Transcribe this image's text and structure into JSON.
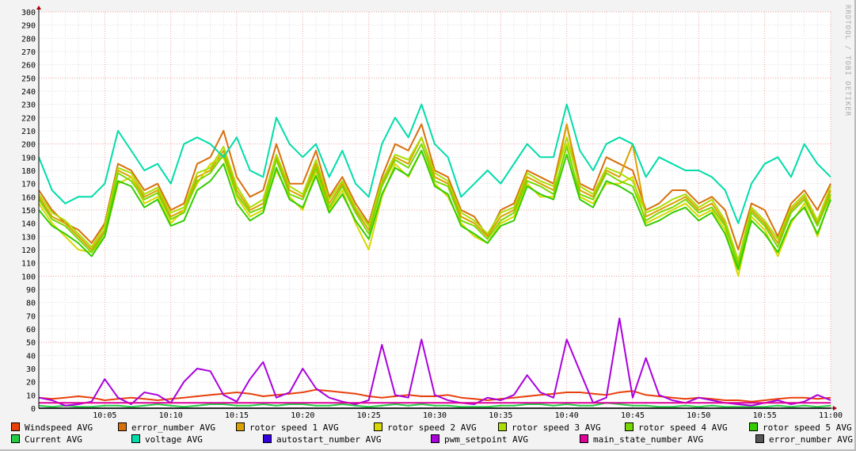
{
  "watermark": "RRDTOOL / TOBI OETIKER",
  "chart_data": {
    "type": "line",
    "title": "",
    "xlabel": "",
    "ylabel": "",
    "ylim": [
      0,
      300
    ],
    "y_ticks": [
      0,
      10,
      20,
      30,
      40,
      50,
      60,
      70,
      80,
      90,
      100,
      110,
      120,
      130,
      140,
      150,
      160,
      170,
      180,
      190,
      200,
      210,
      220,
      230,
      240,
      250,
      260,
      270,
      280,
      290,
      300
    ],
    "x_range": [
      "10:00",
      "11:00"
    ],
    "x_tick_labels": [
      "10:05",
      "10:10",
      "10:15",
      "10:20",
      "10:25",
      "10:30",
      "10:35",
      "10:40",
      "10:45",
      "10:50",
      "10:55",
      "11:00"
    ],
    "x_minutes": "one value per minute from 10:00 to 11:00",
    "grid": true,
    "legend_placement": "bottom",
    "series": [
      {
        "name": "Windspeed AVG",
        "color": "#E8400C",
        "values": [
          8,
          7,
          8,
          9,
          8,
          6,
          7,
          8,
          7,
          6,
          7,
          8,
          9,
          10,
          11,
          12,
          11,
          9,
          10,
          11,
          12,
          14,
          13,
          12,
          11,
          9,
          8,
          9,
          10,
          9,
          9,
          10,
          8,
          7,
          6,
          7,
          8,
          9,
          10,
          11,
          12,
          12,
          11,
          10,
          12,
          13,
          10,
          9,
          8,
          7,
          8,
          7,
          6,
          6,
          5,
          6,
          7,
          8,
          8,
          7,
          8
        ]
      },
      {
        "name": "error_number AVG",
        "color": "#D8700C",
        "values": [
          165,
          150,
          140,
          135,
          125,
          140,
          185,
          180,
          165,
          170,
          150,
          155,
          185,
          190,
          210,
          175,
          160,
          165,
          200,
          170,
          170,
          195,
          160,
          175,
          155,
          140,
          175,
          200,
          195,
          215,
          180,
          175,
          150,
          145,
          130,
          150,
          155,
          180,
          175,
          170,
          215,
          170,
          165,
          190,
          185,
          180,
          150,
          155,
          165,
          165,
          155,
          160,
          150,
          120,
          155,
          150,
          130,
          155,
          165,
          150,
          170
        ]
      },
      {
        "name": "rotor speed 1 AVG",
        "color": "#DBA100",
        "values": [
          160,
          145,
          140,
          130,
          120,
          135,
          180,
          175,
          160,
          165,
          145,
          150,
          175,
          180,
          195,
          165,
          150,
          155,
          190,
          165,
          160,
          185,
          155,
          170,
          150,
          135,
          170,
          190,
          185,
          205,
          175,
          170,
          145,
          140,
          130,
          145,
          150,
          175,
          170,
          165,
          215,
          165,
          160,
          180,
          175,
          200,
          145,
          150,
          155,
          160,
          150,
          155,
          140,
          110,
          150,
          140,
          125,
          150,
          160,
          140,
          165
        ]
      },
      {
        "name": "rotor speed 2 AVG",
        "color": "#D8D800",
        "values": [
          155,
          140,
          130,
          120,
          118,
          130,
          170,
          175,
          155,
          160,
          140,
          150,
          170,
          185,
          190,
          160,
          145,
          150,
          180,
          160,
          150,
          180,
          150,
          165,
          140,
          120,
          160,
          185,
          175,
          195,
          170,
          160,
          140,
          130,
          125,
          140,
          145,
          170,
          160,
          160,
          200,
          160,
          155,
          170,
          170,
          175,
          140,
          145,
          150,
          155,
          145,
          150,
          135,
          100,
          145,
          135,
          115,
          140,
          155,
          130,
          160
        ]
      },
      {
        "name": "rotor speed 3 AVG",
        "color": "#AADD00",
        "values": [
          162,
          148,
          142,
          132,
          122,
          138,
          182,
          178,
          162,
          167,
          148,
          152,
          178,
          182,
          198,
          168,
          152,
          158,
          192,
          168,
          162,
          188,
          158,
          172,
          152,
          138,
          172,
          192,
          188,
          205,
          178,
          172,
          148,
          142,
          132,
          148,
          152,
          178,
          172,
          168,
          205,
          168,
          162,
          182,
          178,
          172,
          148,
          152,
          158,
          162,
          152,
          158,
          142,
          112,
          152,
          142,
          128,
          152,
          162,
          142,
          168
        ]
      },
      {
        "name": "rotor speed 4 AVG",
        "color": "#77D800",
        "values": [
          158,
          143,
          138,
          128,
          118,
          133,
          178,
          172,
          158,
          163,
          143,
          148,
          172,
          178,
          192,
          162,
          148,
          152,
          188,
          162,
          158,
          182,
          152,
          168,
          148,
          132,
          168,
          188,
          182,
          200,
          172,
          168,
          142,
          138,
          128,
          142,
          148,
          172,
          168,
          162,
          198,
          162,
          158,
          178,
          172,
          168,
          142,
          148,
          152,
          158,
          148,
          152,
          138,
          108,
          148,
          138,
          122,
          148,
          158,
          138,
          162
        ]
      },
      {
        "name": "rotor speed 5 AVG",
        "color": "#33CC00",
        "values": [
          150,
          138,
          132,
          125,
          115,
          130,
          172,
          168,
          152,
          158,
          138,
          142,
          165,
          172,
          185,
          155,
          142,
          148,
          182,
          158,
          152,
          176,
          148,
          162,
          142,
          128,
          162,
          182,
          176,
          195,
          168,
          162,
          138,
          132,
          125,
          138,
          142,
          168,
          162,
          158,
          192,
          158,
          152,
          172,
          168,
          162,
          138,
          142,
          148,
          152,
          142,
          148,
          132,
          105,
          142,
          132,
          118,
          142,
          152,
          132,
          158
        ]
      },
      {
        "name": "Current AVG",
        "color": "#22CC44",
        "values": [
          2,
          1,
          2,
          1,
          1,
          2,
          2,
          1,
          2,
          3,
          2,
          1,
          2,
          3,
          3,
          2,
          2,
          3,
          2,
          3,
          3,
          2,
          2,
          3,
          2,
          1,
          2,
          3,
          2,
          3,
          2,
          2,
          1,
          1,
          1,
          2,
          2,
          3,
          3,
          2,
          3,
          2,
          2,
          4,
          3,
          2,
          2,
          1,
          1,
          2,
          1,
          2,
          1,
          1,
          1,
          1,
          2,
          1,
          2,
          1,
          2
        ]
      },
      {
        "name": "voltage AVG",
        "color": "#00DDAA",
        "values": [
          190,
          165,
          155,
          160,
          160,
          170,
          210,
          195,
          180,
          185,
          170,
          200,
          205,
          200,
          190,
          205,
          180,
          175,
          220,
          200,
          190,
          200,
          175,
          195,
          170,
          160,
          200,
          220,
          205,
          230,
          200,
          190,
          160,
          170,
          180,
          170,
          185,
          200,
          190,
          190,
          230,
          195,
          180,
          200,
          205,
          200,
          175,
          190,
          185,
          180,
          180,
          175,
          165,
          140,
          170,
          185,
          190,
          175,
          200,
          185,
          175
        ]
      },
      {
        "name": "autostart_number AVG",
        "color": "#3300DD",
        "values": [
          0,
          0,
          0,
          0,
          0,
          0,
          0,
          0,
          0,
          0,
          0,
          0,
          0,
          0,
          0,
          0,
          0,
          0,
          0,
          0,
          0,
          0,
          0,
          0,
          0,
          0,
          0,
          0,
          0,
          0,
          0,
          0,
          0,
          0,
          0,
          0,
          0,
          0,
          0,
          0,
          0,
          0,
          0,
          0,
          0,
          0,
          0,
          0,
          0,
          0,
          0,
          0,
          0,
          0,
          0,
          0,
          0,
          0,
          0,
          0,
          0
        ]
      },
      {
        "name": "pwm_setpoint AVG",
        "color": "#AA00DD",
        "values": [
          8,
          6,
          2,
          3,
          5,
          22,
          8,
          3,
          12,
          10,
          4,
          20,
          30,
          28,
          10,
          5,
          22,
          35,
          8,
          12,
          30,
          15,
          8,
          5,
          3,
          6,
          48,
          10,
          8,
          52,
          10,
          6,
          4,
          3,
          8,
          6,
          10,
          25,
          12,
          8,
          52,
          28,
          4,
          8,
          68,
          8,
          38,
          10,
          6,
          4,
          8,
          6,
          4,
          3,
          2,
          4,
          6,
          3,
          5,
          10,
          6
        ]
      },
      {
        "name": "main_state_number AVG",
        "color": "#DD0099",
        "values": [
          4,
          4,
          4,
          4,
          4,
          4,
          4,
          4,
          4,
          4,
          4,
          4,
          4,
          4,
          4,
          4,
          4,
          4,
          4,
          4,
          4,
          4,
          4,
          4,
          4,
          4,
          4,
          4,
          4,
          4,
          4,
          4,
          4,
          4,
          4,
          4,
          4,
          4,
          4,
          4,
          4,
          4,
          4,
          4,
          4,
          4,
          4,
          4,
          4,
          4,
          4,
          4,
          4,
          4,
          4,
          4,
          4,
          4,
          4,
          4,
          4
        ]
      },
      {
        "name": "error_number AVG",
        "color": "#555555",
        "values": [
          0,
          0,
          0,
          0,
          0,
          0,
          0,
          0,
          0,
          0,
          0,
          0,
          0,
          0,
          0,
          0,
          0,
          0,
          0,
          0,
          0,
          0,
          0,
          0,
          0,
          0,
          0,
          0,
          0,
          0,
          0,
          0,
          0,
          0,
          0,
          0,
          0,
          0,
          0,
          0,
          0,
          0,
          0,
          0,
          0,
          0,
          0,
          0,
          0,
          0,
          0,
          0,
          0,
          0,
          0,
          0,
          0,
          0,
          0,
          0,
          0
        ]
      }
    ]
  }
}
